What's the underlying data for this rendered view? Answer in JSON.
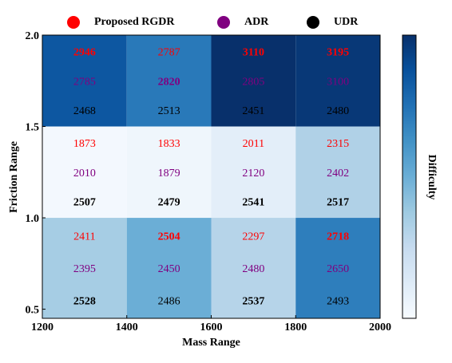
{
  "chart_data": {
    "type": "heatmap",
    "xlabel": "Mass Range",
    "ylabel": "Friction Range",
    "x_edges": [
      1200,
      1400,
      1600,
      1800,
      2000
    ],
    "x_tick_labels": [
      "1200",
      "1400",
      "1600",
      "1800",
      "2000"
    ],
    "y_edges": [
      0.45,
      1.0,
      1.5,
      2.0
    ],
    "y_ticks": [
      0.5,
      1.0,
      1.5,
      2.0
    ],
    "y_tick_labels": [
      "0.5",
      "1.0",
      "1.5",
      "2.0"
    ],
    "xlim": [
      1200,
      2000
    ],
    "ylim": [
      0.45,
      2.0
    ],
    "colorbar_label": "Difficulty",
    "colormap": "Blues",
    "legend": [
      {
        "name": "Proposed RGDR",
        "color": "#ff0000"
      },
      {
        "name": "ADR",
        "color": "#800080"
      },
      {
        "name": "UDR",
        "color": "#000000"
      }
    ],
    "difficulty": [
      [
        0.35,
        0.5,
        0.3,
        0.7
      ],
      [
        0.02,
        0.04,
        0.1,
        0.32
      ],
      [
        0.85,
        0.72,
        1.0,
        0.97
      ]
    ],
    "series": [
      {
        "name": "Proposed RGDR",
        "color": "#ff0000",
        "values": [
          [
            2411,
            2504,
            2297,
            2718
          ],
          [
            1873,
            1833,
            2011,
            2315
          ],
          [
            2946,
            2787,
            3110,
            3195
          ]
        ],
        "bold": [
          [
            false,
            true,
            false,
            true
          ],
          [
            false,
            false,
            false,
            false
          ],
          [
            true,
            false,
            true,
            true
          ]
        ]
      },
      {
        "name": "ADR",
        "color": "#800080",
        "values": [
          [
            2395,
            2450,
            2480,
            2650
          ],
          [
            2010,
            1879,
            2120,
            2402
          ],
          [
            2785,
            2820,
            2805,
            3100
          ]
        ],
        "bold": [
          [
            false,
            false,
            false,
            false
          ],
          [
            false,
            false,
            false,
            false
          ],
          [
            false,
            true,
            false,
            false
          ]
        ]
      },
      {
        "name": "UDR",
        "color": "#000000",
        "values": [
          [
            2528,
            2486,
            2537,
            2493
          ],
          [
            2507,
            2479,
            2541,
            2517
          ],
          [
            2468,
            2513,
            2451,
            2480
          ]
        ],
        "bold": [
          [
            true,
            false,
            true,
            false
          ],
          [
            true,
            true,
            true,
            true
          ],
          [
            false,
            false,
            false,
            false
          ]
        ]
      }
    ]
  }
}
